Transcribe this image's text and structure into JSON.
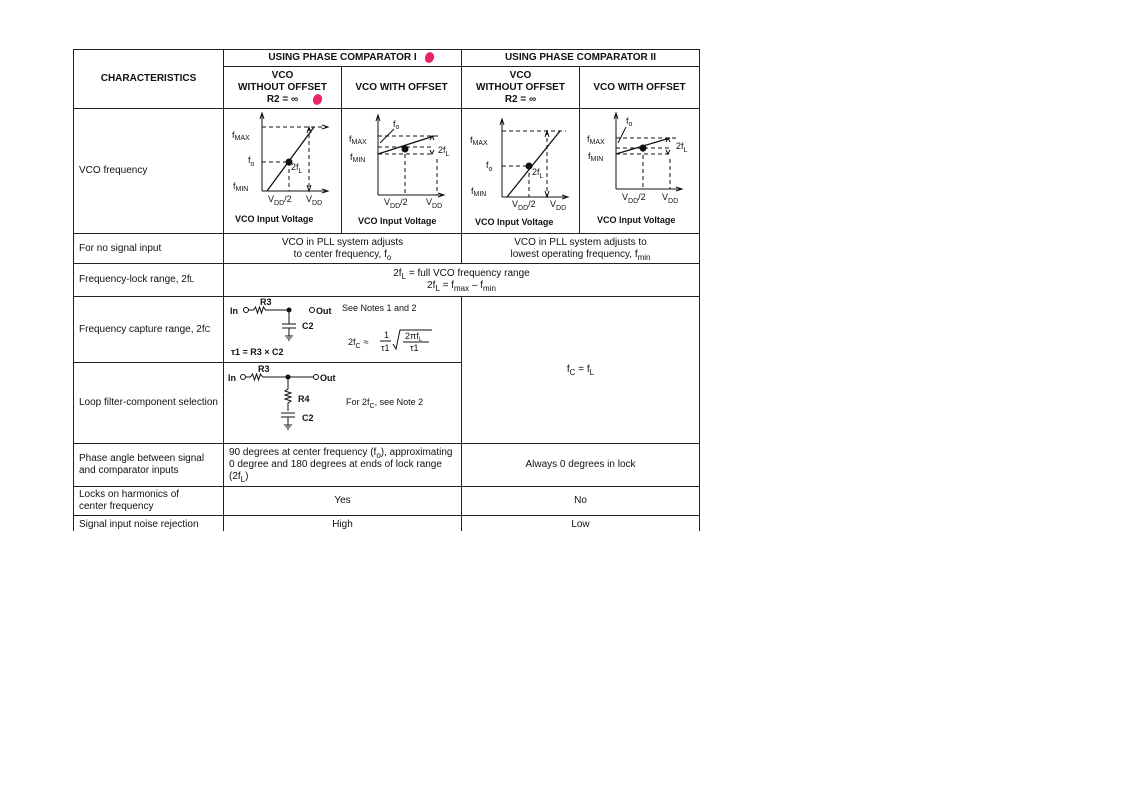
{
  "header": {
    "characteristics": "CHARACTERISTICS",
    "pc1": "USING PHASE COMPARATOR I",
    "pc2": "USING PHASE COMPARATOR II",
    "vco_without_1": "VCO",
    "vco_without_2": "WITHOUT OFFSET",
    "vco_without_3": "R2 = ∞",
    "vco_with": "VCO WITH OFFSET"
  },
  "graph": {
    "fmax": "MAX",
    "fmin": "MIN",
    "fo": "o",
    "twofl": "2f",
    "l": "L",
    "vdd2": "V",
    "dd": "DD",
    "half": "/2",
    "caption": "VCO Input Voltage",
    "f": "f"
  },
  "rows": {
    "vco_freq": "VCO frequency",
    "no_signal": "For no signal input",
    "no_signal_pc1a": "VCO in PLL system adjusts",
    "no_signal_pc1b": "to center frequency, f",
    "no_signal_pc1sub": "o",
    "no_signal_pc2a": "VCO in PLL system adjusts to",
    "no_signal_pc2b": "lowest operating frequency, f",
    "no_signal_pc2sub": "min",
    "lock": "Frequency-lock range, 2f",
    "lock_sub": "L",
    "lock_v1a": "2f",
    "lock_v1sub": "L",
    "lock_v1b": " = full VCO frequency range",
    "lock_v2a": "2f",
    "lock_v2sub": "L",
    "lock_v2b": " = f",
    "lock_v2sub2": "max",
    "lock_v2c": " – f",
    "lock_v2sub3": "min",
    "capture": "Frequency capture range, 2f",
    "capture_sub": "C",
    "capture_notes": "See Notes 1 and 2",
    "tau": "τ1 = R3 × C2",
    "capture_formula": "2f",
    "capture_formula_sub": "C",
    "approx": "≈",
    "frac_num": "1",
    "frac_den": "τ1",
    "sqrt_num": "2πf",
    "sqrt_num_sub": "L",
    "sqrt_den": "τ1",
    "in": "In",
    "out": "Out",
    "r3": "R3",
    "r4": "R4",
    "c2": "C2",
    "pc2_capture": "f",
    "pc2_capture_sub": "C",
    "pc2_capture_b": " = f",
    "pc2_capture_sub2": "L",
    "loop": "Loop filter-component selection",
    "loop_note": "For 2f",
    "loop_note_sub": "C",
    "loop_note_b": ", see Note 2",
    "phase": "Phase angle between signal and comparator inputs",
    "phase_pc1": "90 degrees at center frequency (f",
    "phase_pc1_sub": "o",
    "phase_pc1_b": "), approximating 0 degree and 180 degrees at ends of lock range (2f",
    "phase_pc1_sub2": "L",
    "phase_pc1_c": ")",
    "phase_pc2": "Always 0 degrees in lock",
    "harm": "Locks on harmonics of center frequency",
    "harm_pc1": "Yes",
    "harm_pc2": "No",
    "noise": "Signal input noise rejection",
    "noise_pc1": "High",
    "noise_pc2": "Low"
  }
}
